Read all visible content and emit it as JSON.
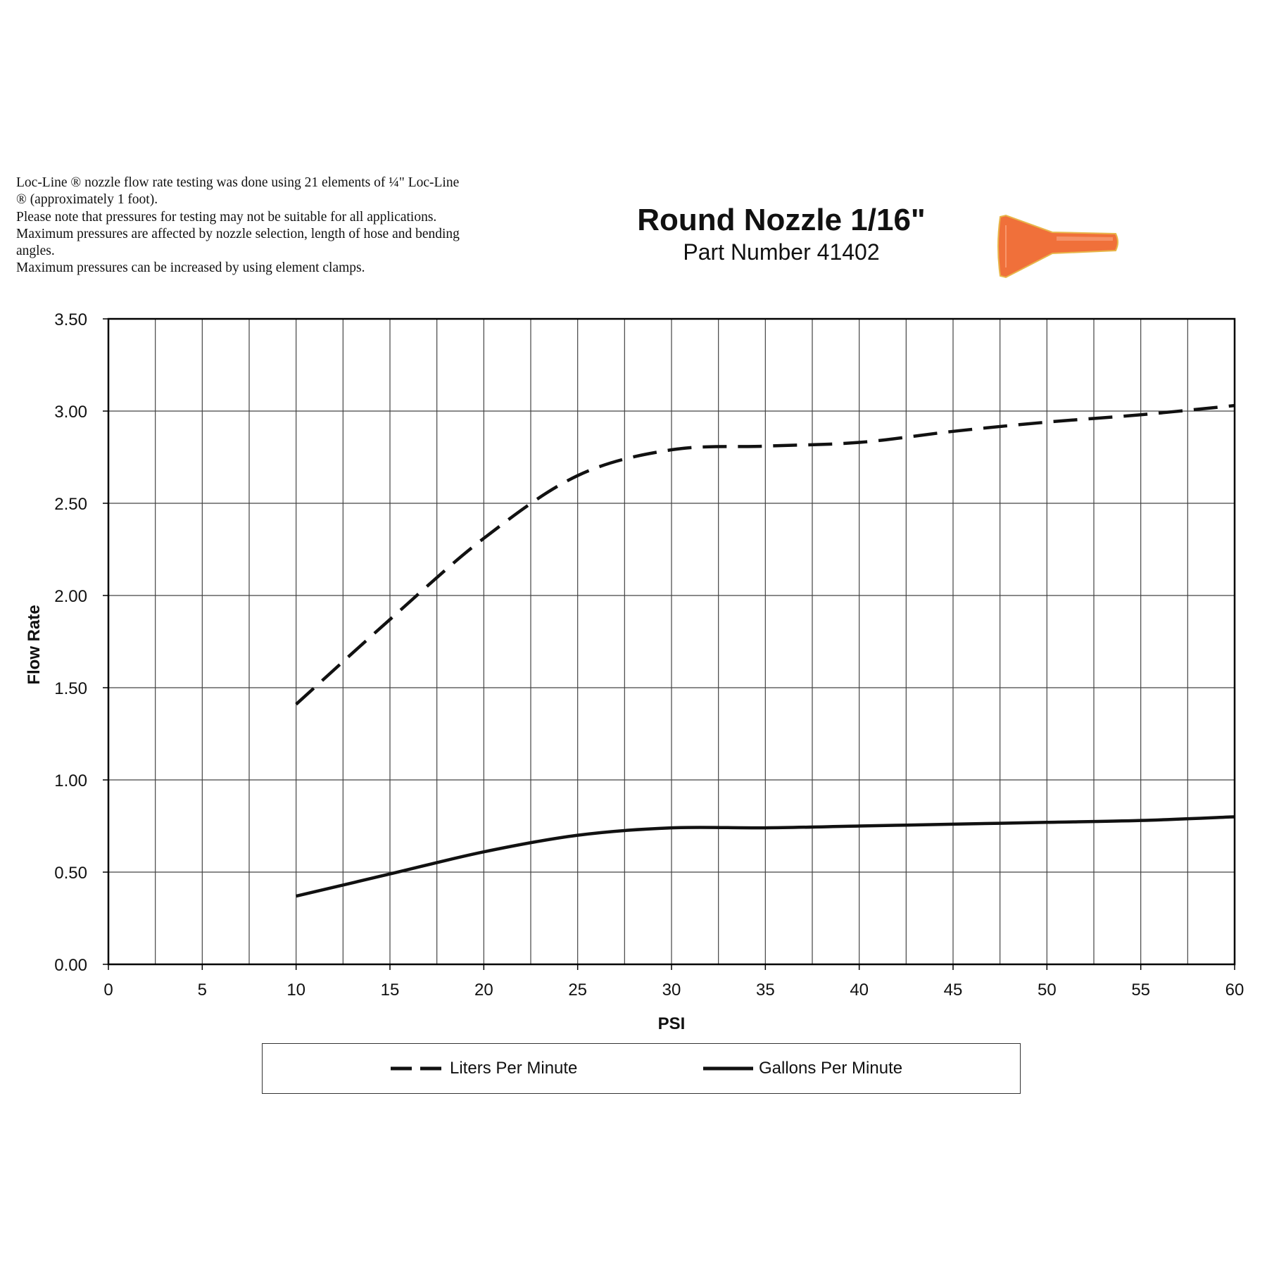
{
  "notes": [
    "Loc-Line ® nozzle flow rate testing was done using 21 elements of ¼\" Loc-Line",
    "® (approximately 1 foot).",
    "Please note that pressures for testing may not be suitable for all applications.",
    "Maximum pressures are affected by nozzle selection, length of hose and bending",
    "angles.",
    "Maximum pressures can be increased by using element clamps."
  ],
  "header": {
    "title": "Round Nozzle 1/16\"",
    "subtitle": "Part Number 41402",
    "product_icon": "orange-round-nozzle",
    "product_color": "#f0703a"
  },
  "chart_data": {
    "type": "line",
    "xlabel": "PSI",
    "ylabel": "Flow Rate",
    "xlim": [
      0,
      60
    ],
    "ylim": [
      0,
      3.5
    ],
    "x_ticks": [
      0,
      5,
      10,
      15,
      20,
      25,
      30,
      35,
      40,
      45,
      50,
      55,
      60
    ],
    "y_ticks": [
      "0.00",
      "0.50",
      "1.00",
      "1.50",
      "2.00",
      "2.50",
      "3.00",
      "3.50"
    ],
    "grid": true,
    "legend_position": "bottom",
    "series": [
      {
        "name": "Liters Per Minute",
        "style": "dashed",
        "color": "#111111",
        "x": [
          10,
          15,
          20,
          25,
          30,
          35,
          40,
          45,
          50,
          55,
          60
        ],
        "values": [
          1.41,
          1.87,
          2.31,
          2.65,
          2.79,
          2.81,
          2.83,
          2.89,
          2.94,
          2.98,
          3.03
        ]
      },
      {
        "name": "Gallons Per Minute",
        "style": "solid",
        "color": "#111111",
        "x": [
          10,
          15,
          20,
          25,
          30,
          35,
          40,
          45,
          50,
          55,
          60
        ],
        "values": [
          0.37,
          0.49,
          0.61,
          0.7,
          0.74,
          0.74,
          0.75,
          0.76,
          0.77,
          0.78,
          0.8
        ]
      }
    ]
  }
}
